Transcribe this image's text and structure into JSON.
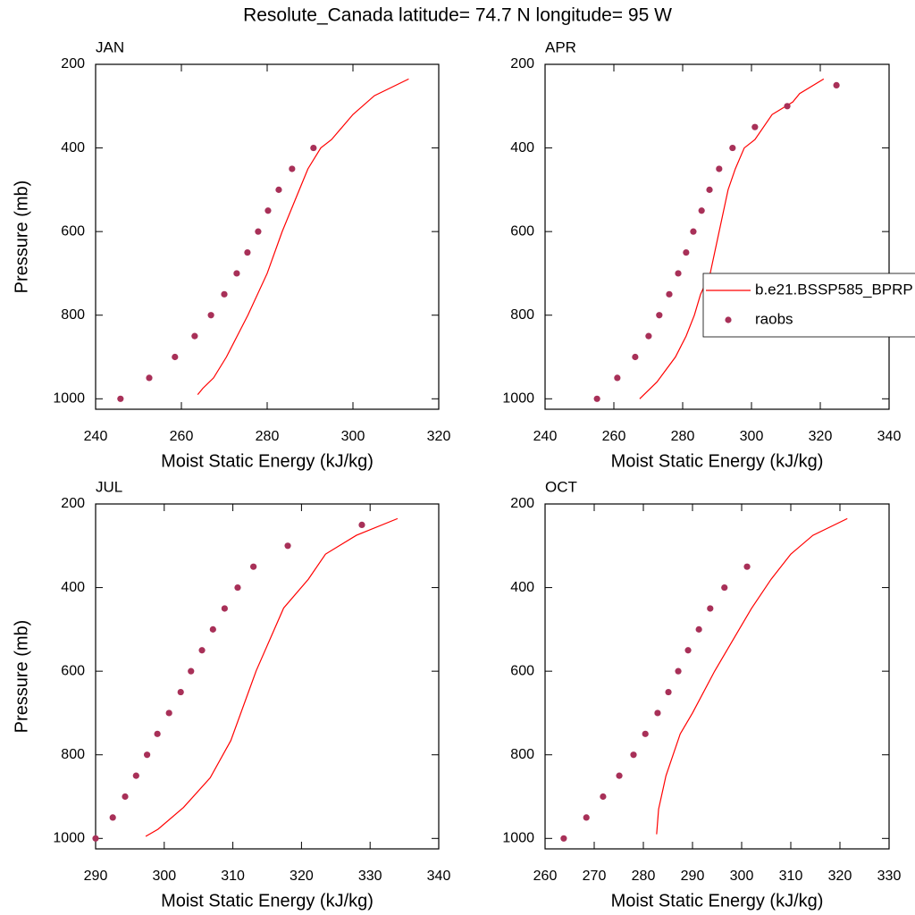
{
  "title": "Resolute_Canada  latitude= 74.7 N longitude= 95 W",
  "chart_data": [
    {
      "type": "line",
      "title": "JAN",
      "xlabel": "Moist Static Energy (kJ/kg)",
      "ylabel": "Pressure (mb)",
      "xlim": [
        240,
        320
      ],
      "xticks": [
        240,
        260,
        280,
        300,
        320
      ],
      "ylim": [
        1025,
        200
      ],
      "yticks": [
        200,
        400,
        600,
        800,
        1000
      ],
      "series": [
        {
          "color": "#ff0000",
          "style": "line",
          "x": [
            263.8,
            265,
            267.5,
            270.5,
            273,
            275.5,
            280,
            283.5,
            287.5,
            289.5,
            292.5,
            295,
            300,
            305,
            313
          ],
          "y": [
            990,
            975,
            950,
            900,
            850,
            800,
            700,
            600,
            500,
            450,
            400,
            380,
            320,
            275,
            235
          ]
        },
        {
          "color": "#a83058",
          "style": "marker",
          "x": [
            245.8,
            252.5,
            258.5,
            263.1,
            266.9,
            270,
            272.9,
            275.4,
            277.9,
            280.2,
            282.7,
            285.8,
            290.8
          ],
          "y": [
            1000,
            950,
            900,
            850,
            800,
            750,
            700,
            650,
            600,
            550,
            500,
            450,
            400
          ]
        }
      ]
    },
    {
      "type": "line",
      "title": "APR",
      "xlabel": "Moist Static Energy (kJ/kg)",
      "xlim": [
        240,
        340
      ],
      "xticks": [
        240,
        260,
        280,
        300,
        320,
        340
      ],
      "ylim": [
        1025,
        200
      ],
      "yticks": [
        200,
        400,
        600,
        800,
        1000
      ],
      "legend": "right",
      "series": [
        {
          "name": "b.e21.BSSP585_BPRP",
          "color": "#ff0000",
          "style": "line",
          "x": [
            267.5,
            272.5,
            277.9,
            281,
            283.4,
            285.2,
            288,
            290.6,
            293.2,
            295.3,
            297.9,
            301,
            306,
            312,
            314,
            321
          ],
          "y": [
            1000,
            960,
            900,
            850,
            800,
            750,
            700,
            600,
            500,
            450,
            400,
            380,
            320,
            290,
            270,
            235
          ]
        },
        {
          "name": "raobs",
          "color": "#a83058",
          "style": "marker",
          "x": [
            255.1,
            261,
            266.2,
            270.1,
            273.2,
            276.1,
            278.7,
            281,
            283.1,
            285.5,
            287.8,
            290.6,
            294.5,
            301,
            310.4,
            324.7
          ],
          "y": [
            1000,
            950,
            900,
            850,
            800,
            750,
            700,
            650,
            600,
            550,
            500,
            450,
            400,
            350,
            300,
            250
          ]
        }
      ]
    },
    {
      "type": "line",
      "title": "JUL",
      "xlabel": "Moist Static Energy (kJ/kg)",
      "ylabel": "Pressure (mb)",
      "xlim": [
        290,
        340
      ],
      "xticks": [
        290,
        300,
        310,
        320,
        330,
        340
      ],
      "ylim": [
        1025,
        200
      ],
      "yticks": [
        200,
        400,
        600,
        800,
        1000
      ],
      "series": [
        {
          "color": "#ff0000",
          "style": "line",
          "x": [
            297.3,
            299.1,
            302.8,
            306.7,
            309.7,
            313.4,
            317.4,
            321,
            323.5,
            328,
            334
          ],
          "y": [
            995,
            978,
            926,
            855,
            766,
            599,
            449,
            380,
            320,
            275,
            235
          ]
        },
        {
          "color": "#a83058",
          "style": "marker",
          "x": [
            290,
            292.5,
            294.3,
            295.9,
            297.5,
            299,
            300.7,
            302.4,
            303.9,
            305.5,
            307.1,
            308.8,
            310.7,
            313,
            318,
            328.8
          ],
          "y": [
            1000,
            950,
            900,
            850,
            800,
            750,
            700,
            650,
            600,
            550,
            500,
            450,
            400,
            350,
            300,
            250
          ]
        }
      ]
    },
    {
      "type": "line",
      "title": "OCT",
      "xlabel": "Moist Static Energy (kJ/kg)",
      "xlim": [
        260,
        330
      ],
      "xticks": [
        260,
        270,
        280,
        290,
        300,
        310,
        320,
        330
      ],
      "ylim": [
        1025,
        200
      ],
      "yticks": [
        200,
        400,
        600,
        800,
        1000
      ],
      "series": [
        {
          "color": "#ff0000",
          "style": "line",
          "x": [
            282.7,
            283.1,
            284.6,
            287.5,
            290,
            294.5,
            299.5,
            302,
            306,
            310,
            314.5,
            321.5
          ],
          "y": [
            990,
            930,
            850,
            750,
            700,
            600,
            500,
            450,
            380,
            320,
            275,
            235
          ]
        },
        {
          "color": "#a83058",
          "style": "marker",
          "x": [
            263.8,
            268.4,
            271.8,
            275.1,
            278,
            280.4,
            282.9,
            285.1,
            287.1,
            289.1,
            291.3,
            293.6,
            296.5,
            301.1
          ],
          "y": [
            1000,
            950,
            900,
            850,
            800,
            750,
            700,
            650,
            600,
            550,
            500,
            450,
            400,
            350
          ]
        }
      ]
    }
  ]
}
